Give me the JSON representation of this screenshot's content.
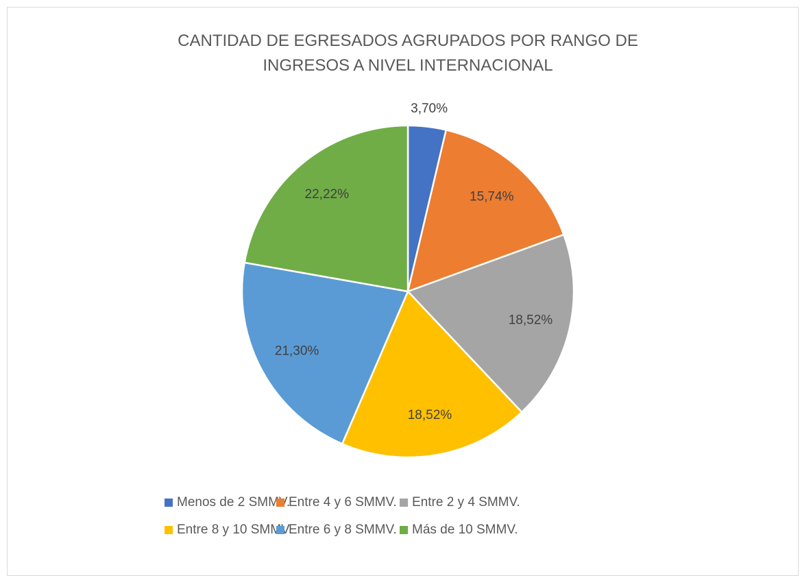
{
  "chart_data": {
    "type": "pie",
    "title": "CANTIDAD DE EGRESADOS AGRUPADOS POR RANGO DE INGRESOS A NIVEL INTERNACIONAL",
    "categories": [
      "Menos de 2 SMMV.",
      "Entre 4 y 6 SMMV.",
      "Entre 2 y 4 SMMV.",
      "Entre 8 y 10 SMMV.",
      "Entre 6 y 8 SMMV.",
      "Más de 10 SMMV."
    ],
    "values": [
      3.7,
      15.74,
      18.52,
      18.52,
      21.3,
      22.22
    ],
    "value_labels": [
      "3,70%",
      "15,74%",
      "18,52%",
      "18,52%",
      "21,30%",
      "22,22%"
    ],
    "colors": [
      "#4472c4",
      "#ed7d31",
      "#a5a5a5",
      "#ffc000",
      "#5b9bd5",
      "#70ad47"
    ],
    "legend": "bottom"
  }
}
